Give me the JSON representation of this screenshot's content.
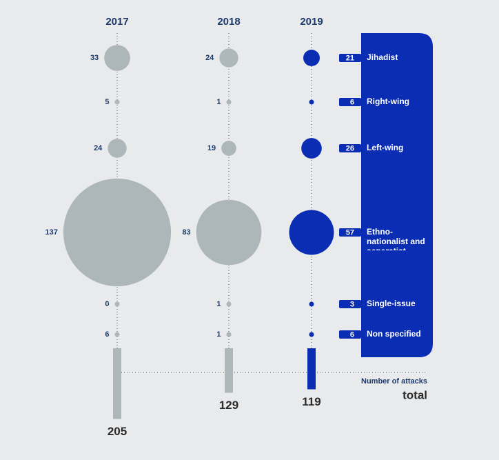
{
  "chart_data": {
    "type": "bubble",
    "categories": [
      "Jihadist",
      "Right-wing",
      "Left-wing",
      "Ethno-nationalist and separatist",
      "Single-issue",
      "Non specified"
    ],
    "series": [
      {
        "name": "2017",
        "color": "#adb6b9",
        "values": [
          33,
          5,
          24,
          137,
          0,
          6
        ],
        "total": 205
      },
      {
        "name": "2018",
        "color": "#adb6b9",
        "values": [
          24,
          1,
          19,
          83,
          1,
          1
        ],
        "total": 129
      },
      {
        "name": "2019",
        "color": "#0a2db3",
        "values": [
          21,
          6,
          26,
          57,
          3,
          6
        ],
        "total": 119
      }
    ],
    "total_caption": "Number of attacks",
    "total_label": "total"
  }
}
